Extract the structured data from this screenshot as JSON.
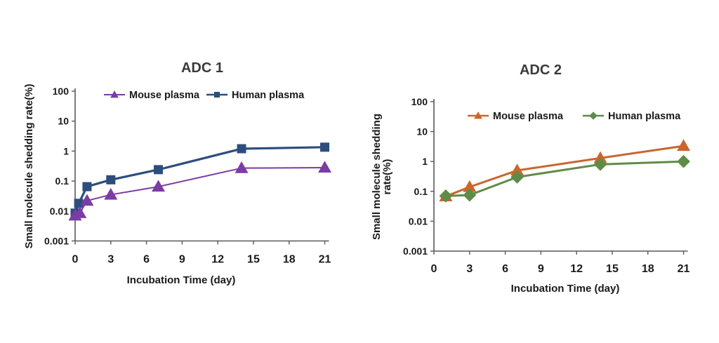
{
  "figure": {
    "background": "#ffffff",
    "title_color": "#3A3A3A",
    "text_color": "#1A1A1A",
    "axis_color": "#58595B"
  },
  "chart_data": [
    {
      "type": "line",
      "title": "ADC 1",
      "xlabel": "Incubation Time (day)",
      "ylabel_lines": [
        "Small molecule shedding rate(%)"
      ],
      "x_ticks": [
        0,
        3,
        6,
        9,
        12,
        15,
        18,
        21
      ],
      "y_tick_labels": [
        "100",
        "10",
        "1",
        "0.1",
        "0.01",
        "0.001"
      ],
      "y_scale": "log",
      "ylim": [
        0.001,
        100
      ],
      "xlim": [
        0,
        21
      ],
      "grid": false,
      "legend_position": "top-inside",
      "series": [
        {
          "name": "Mouse plasma",
          "color": "#7A3CA5",
          "marker": "triangle",
          "line_width": 2,
          "x": [
            0,
            0.4,
            1,
            3,
            7,
            14,
            21
          ],
          "y": [
            0.007,
            0.0085,
            0.022,
            0.035,
            0.065,
            0.27,
            0.28
          ]
        },
        {
          "name": "Human plasma",
          "color": "#2D4E7D",
          "marker": "square",
          "line_width": 3.2,
          "x": [
            0,
            0.3,
            1,
            3,
            7,
            14,
            21
          ],
          "y": [
            0.0085,
            0.018,
            0.065,
            0.11,
            0.24,
            1.2,
            1.35
          ]
        }
      ]
    },
    {
      "type": "line",
      "title": "ADC 2",
      "xlabel": "Incubation Time (day)",
      "ylabel_lines": [
        "Small molecule shedding",
        "rate(%)"
      ],
      "x_ticks": [
        0,
        3,
        6,
        9,
        12,
        15,
        18,
        21
      ],
      "y_tick_labels": [
        "100",
        "10",
        "1",
        "0.1",
        "0.01",
        "0.001"
      ],
      "y_scale": "log",
      "ylim": [
        0.001,
        100
      ],
      "xlim": [
        0,
        21
      ],
      "grid": false,
      "legend_position": "top-inside",
      "series": [
        {
          "name": "Mouse plasma",
          "color": "#C9662E",
          "marker": "triangle",
          "line_width": 3,
          "x": [
            1,
            3,
            7,
            14,
            21
          ],
          "y": [
            0.068,
            0.14,
            0.5,
            1.3,
            3.3
          ]
        },
        {
          "name": "Human plasma",
          "color": "#5E8C46",
          "marker": "diamond",
          "line_width": 3,
          "x": [
            1,
            3,
            7,
            14,
            21
          ],
          "y": [
            0.07,
            0.075,
            0.3,
            0.8,
            1.0
          ]
        }
      ]
    }
  ]
}
